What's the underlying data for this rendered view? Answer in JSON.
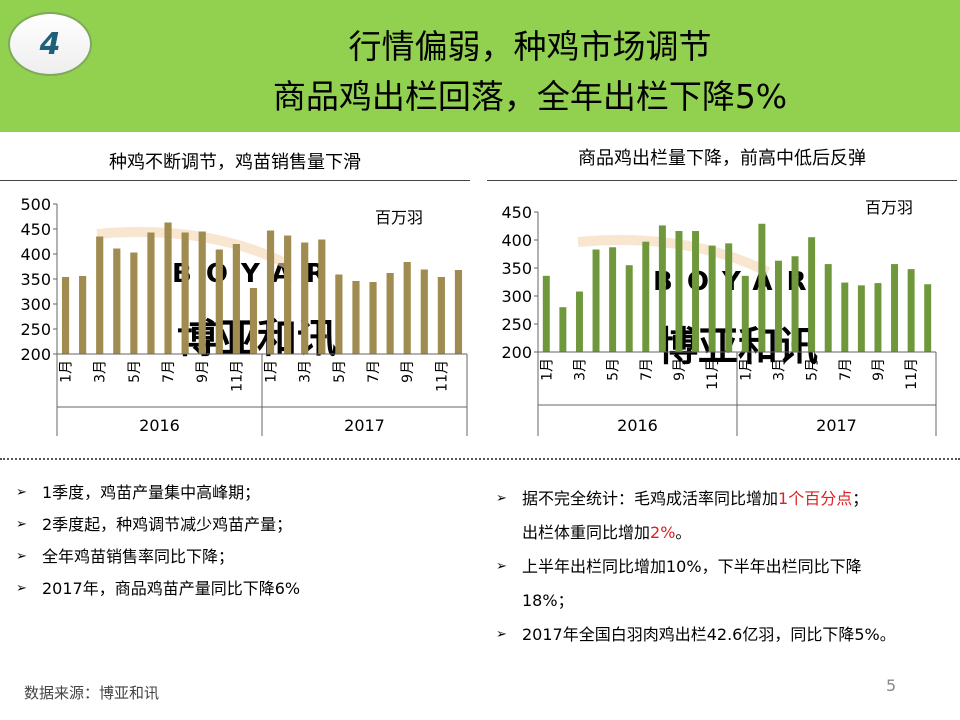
{
  "header": {
    "badge": "4",
    "title_line1": "行情偏弱，种鸡市场调节",
    "title_line2": "商品鸡出栏回落，全年出栏下降5%"
  },
  "colors": {
    "header_green": "#92d050",
    "left_bar": "#a08c50",
    "right_bar": "#6f973c",
    "highlight_red": "#e02020"
  },
  "chart_data": [
    {
      "type": "bar",
      "title": "种鸡不断调节，鸡苗销售量下滑",
      "unit_label": "百万羽",
      "ylim": [
        200,
        500
      ],
      "yticks": [
        200,
        250,
        300,
        350,
        400,
        450,
        500
      ],
      "month_labels": [
        "1月",
        "",
        "3月",
        "",
        "5月",
        "",
        "7月",
        "",
        "9月",
        "",
        "11月",
        "",
        "1月",
        "",
        "3月",
        "",
        "5月",
        "",
        "7月",
        "",
        "9月",
        "",
        "11月",
        ""
      ],
      "years": [
        "2016",
        "2017"
      ],
      "values": [
        354,
        356,
        435,
        411,
        403,
        443,
        463,
        443,
        445,
        409,
        420,
        332,
        447,
        437,
        423,
        429,
        359,
        346,
        344,
        362,
        384,
        369,
        354,
        368
      ],
      "watermark": "BOYAR 博亚和讯"
    },
    {
      "type": "bar",
      "title": "商品鸡出栏量下降，前高中低后反弹",
      "unit_label": "百万羽",
      "ylim": [
        200,
        450
      ],
      "yticks": [
        200,
        250,
        300,
        350,
        400,
        450
      ],
      "month_labels": [
        "1月",
        "3月",
        "5月",
        "7月",
        "9月",
        "11月",
        "1月",
        "3月",
        "5月",
        "7月",
        "9月",
        "11月"
      ],
      "years": [
        "2016",
        "2017"
      ],
      "values": [
        336,
        280,
        308,
        383,
        387,
        355,
        397,
        426,
        416,
        416,
        390,
        394,
        336,
        429,
        363,
        371,
        405,
        357,
        324,
        319,
        323,
        357,
        348,
        321
      ],
      "watermark": "BOYAR 博亚和讯"
    }
  ],
  "left_bullets": [
    "1季度，鸡苗产量集中高峰期；",
    "2季度起，种鸡调节减少鸡苗产量；",
    "全年鸡苗销售率同比下降；",
    "2017年，商品鸡苗产量同比下降6%"
  ],
  "right_bullets": {
    "b1_pre": "据不完全统计：毛鸡成活率同比增加",
    "b1_red": "1个百分点",
    "b1_post": "；",
    "b1_line2_pre": "出栏体重同比增加",
    "b1_line2_red": "2%",
    "b1_line2_post": "。",
    "b2_line1": "上半年出栏同比增加10%，下半年出栏同比下降",
    "b2_line2": "18%；",
    "b3": "2017年全国白羽肉鸡出栏42.6亿羽，同比下降5%。"
  },
  "footer": {
    "source": "数据来源：博亚和讯",
    "page": "5"
  }
}
